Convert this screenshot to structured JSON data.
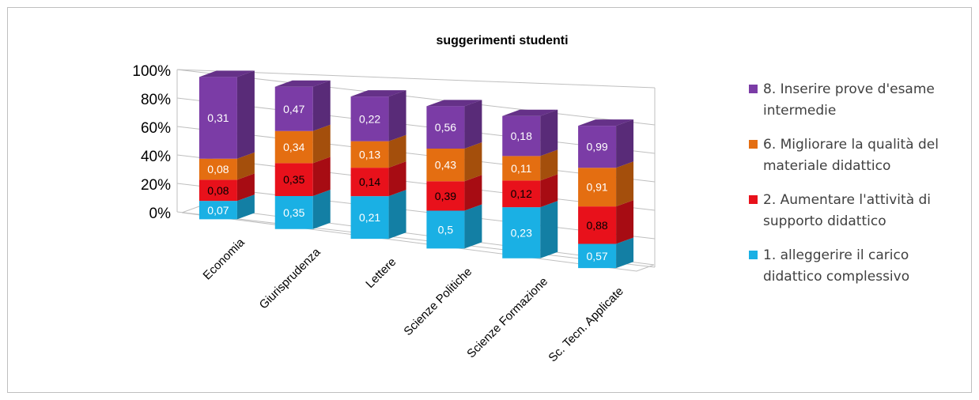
{
  "chart_data": {
    "type": "bar",
    "stacked": true,
    "percent_stacked": true,
    "three_d": true,
    "title": "suggerimenti studenti",
    "categories": [
      "Economia",
      "Giurisprudenza",
      "Lettere",
      "Scienze Politiche",
      "Scienze Formazione",
      "Sc. Tecn. Applicate"
    ],
    "y_ticks": [
      "0%",
      "20%",
      "40%",
      "60%",
      "80%",
      "100%"
    ],
    "ylim": [
      0,
      100
    ],
    "grid": true,
    "legend_position": "right",
    "series": [
      {
        "name": "1. alleggerire il carico didattico complessivo",
        "color": "#1ab0e4",
        "values": [
          0.07,
          0.35,
          0.21,
          0.5,
          0.23,
          0.57
        ],
        "labels": [
          "0,07",
          "0,35",
          "0,21",
          "0,5",
          "0,23",
          "0,57"
        ]
      },
      {
        "name": "2. Aumentare l'attività di supporto didattico",
        "color": "#e8111b",
        "values": [
          0.08,
          0.35,
          0.14,
          0.39,
          0.12,
          0.88
        ],
        "labels": [
          "0,08",
          "0,35",
          "0,14",
          "0,39",
          "0,12",
          "0,88"
        ]
      },
      {
        "name": "6. Migliorare la qualità del materiale didattico",
        "color": "#e46e11",
        "values": [
          0.08,
          0.34,
          0.13,
          0.43,
          0.11,
          0.91
        ],
        "labels": [
          "0,08",
          "0,34",
          "0,13",
          "0,43",
          "0,11",
          "0,91"
        ]
      },
      {
        "name": "8. Inserire prove d'esame intermedie",
        "color": "#7b3ca6",
        "values": [
          0.31,
          0.47,
          0.22,
          0.56,
          0.18,
          0.99
        ],
        "labels": [
          "0,31",
          "0,47",
          "0,22",
          "0,56",
          "0,18",
          "0,99"
        ]
      }
    ]
  },
  "legend": [
    {
      "label": "8. Inserire prove d'esame\nintermedie",
      "color": "#7b3ca6"
    },
    {
      "label": "6. Migliorare la qualità del\nmateriale didattico",
      "color": "#e46e11"
    },
    {
      "label": "2. Aumentare l'attività di\nsupporto didattico",
      "color": "#e8111b"
    },
    {
      "label": "1. alleggerire il carico\ndidattico complessivo",
      "color": "#1ab0e4"
    }
  ]
}
